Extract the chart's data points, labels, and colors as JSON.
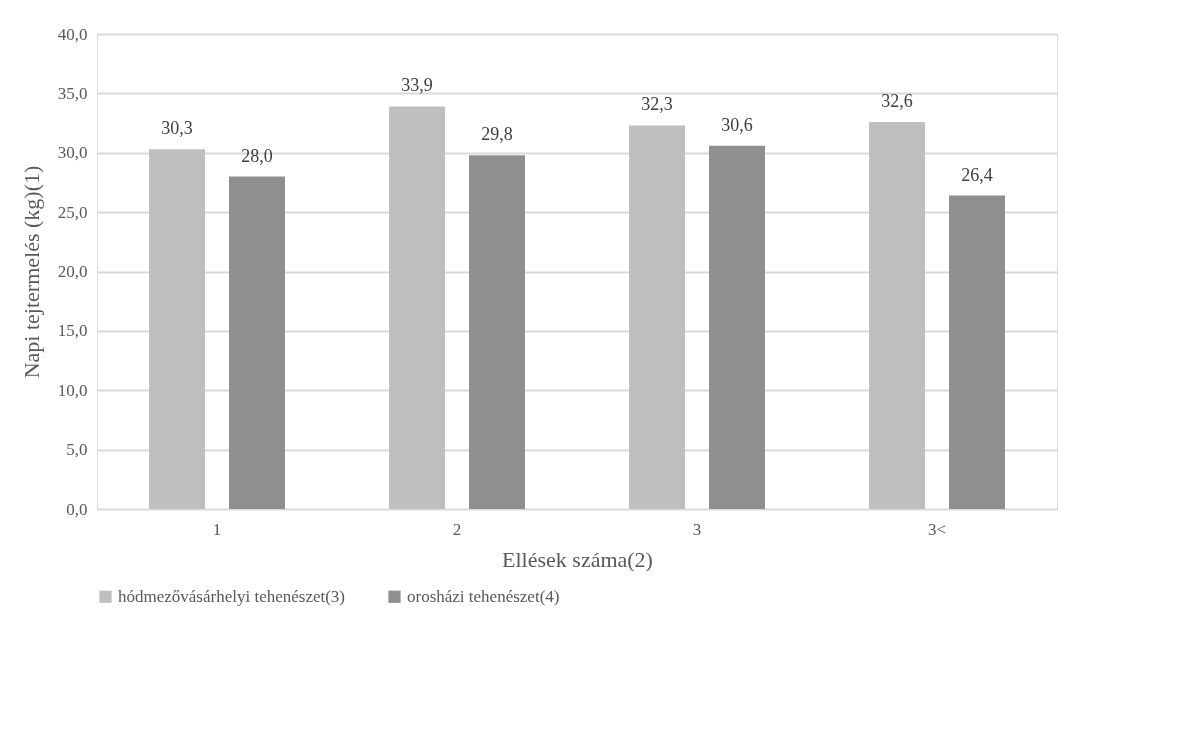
{
  "chart_data": {
    "type": "bar",
    "xlabel": "Ellések száma(2)",
    "ylabel": "Napi tejtermelés (kg)(1)",
    "categories": [
      "1",
      "2",
      "3",
      "3<"
    ],
    "series": [
      {
        "name": "hódmezővásárhelyi tehenészet(3)",
        "color": "#bfbfbf",
        "values": [
          30.3,
          33.9,
          32.3,
          32.6
        ],
        "value_labels": [
          "30,3",
          "33,9",
          "32,3",
          "32,6"
        ]
      },
      {
        "name": "orosházi tehenészet(4)",
        "color": "#8f8f8f",
        "values": [
          28.0,
          29.8,
          30.6,
          26.4
        ],
        "value_labels": [
          "28,0",
          "29,8",
          "30,6",
          "26,4"
        ]
      }
    ],
    "ylim": [
      0,
      40
    ],
    "yticks": [
      {
        "value": 0,
        "label": "0,0"
      },
      {
        "value": 5,
        "label": "5,0"
      },
      {
        "value": 10,
        "label": "10,0"
      },
      {
        "value": 15,
        "label": "15,0"
      },
      {
        "value": 20,
        "label": "20,0"
      },
      {
        "value": 25,
        "label": "25,0"
      },
      {
        "value": 30,
        "label": "30,0"
      },
      {
        "value": 35,
        "label": "35,0"
      },
      {
        "value": 40,
        "label": "40,0"
      }
    ],
    "grid": "y",
    "legend": "bottom"
  }
}
